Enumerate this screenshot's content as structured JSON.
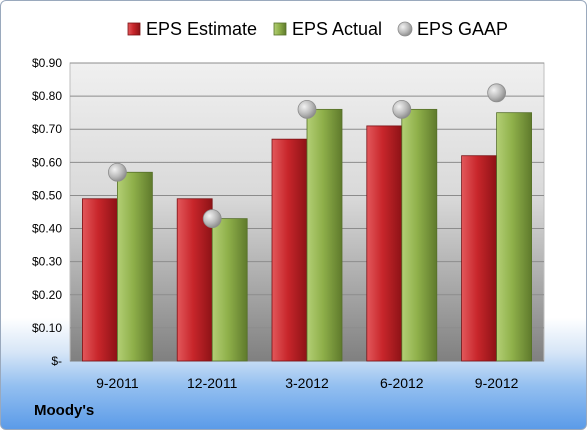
{
  "chart_data": {
    "type": "bar",
    "categories": [
      "9-2011",
      "12-2011",
      "3-2012",
      "6-2012",
      "9-2012"
    ],
    "series": [
      {
        "name": "EPS Estimate",
        "type": "bar",
        "color": "#c8262b",
        "values": [
          0.49,
          0.49,
          0.67,
          0.71,
          0.62
        ]
      },
      {
        "name": "EPS Actual",
        "type": "bar",
        "color": "#8fb04a",
        "values": [
          0.57,
          0.43,
          0.76,
          0.76,
          0.75
        ]
      },
      {
        "name": "EPS GAAP",
        "type": "scatter",
        "color": "#b9b9b9",
        "values": [
          0.57,
          0.43,
          0.76,
          0.76,
          0.81
        ]
      }
    ],
    "yticks": [
      "$-",
      "$0.10",
      "$0.20",
      "$0.30",
      "$0.40",
      "$0.50",
      "$0.60",
      "$0.70",
      "$0.80",
      "$0.90"
    ],
    "ylim": [
      0,
      0.9
    ],
    "grid": true,
    "legend": "top"
  },
  "source_label": "Moody's"
}
